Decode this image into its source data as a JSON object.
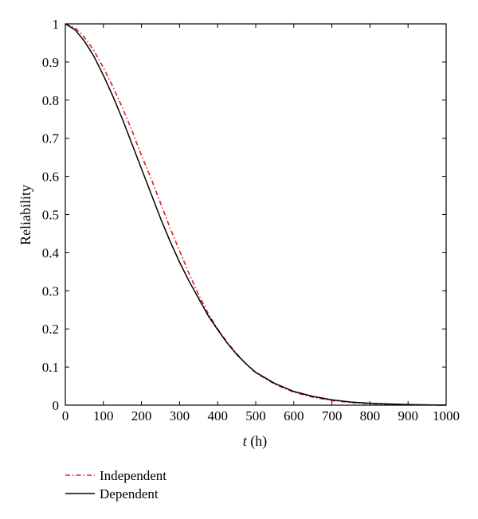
{
  "chart_data": {
    "type": "line",
    "title": "",
    "xlabel_var": "t",
    "xlabel_unit": " (h)",
    "ylabel": "Reliability",
    "xlim": [
      0,
      1000
    ],
    "ylim": [
      0,
      1
    ],
    "x_ticks": [
      0,
      100,
      200,
      300,
      400,
      500,
      600,
      700,
      800,
      900,
      1000
    ],
    "y_ticks": [
      0,
      0.1,
      0.2,
      0.3,
      0.4,
      0.5,
      0.6,
      0.7,
      0.8,
      0.9,
      1
    ],
    "grid": false,
    "legend_position": "bottom-left, below plot",
    "series": [
      {
        "name": "Independent",
        "color": "#e31a1c",
        "style": "dash-dot",
        "x": [
          0,
          25,
          50,
          75,
          100,
          125,
          150,
          175,
          200,
          225,
          250,
          275,
          300,
          325,
          350,
          375,
          400,
          425,
          450,
          475,
          500,
          550,
          600,
          650,
          700,
          750,
          800,
          850,
          900,
          950,
          1000
        ],
        "y": [
          1.0,
          0.99,
          0.965,
          0.93,
          0.885,
          0.835,
          0.78,
          0.72,
          0.655,
          0.595,
          0.53,
          0.465,
          0.405,
          0.345,
          0.29,
          0.24,
          0.2,
          0.165,
          0.135,
          0.108,
          0.085,
          0.055,
          0.034,
          0.021,
          0.012,
          0.007,
          0.004,
          0.002,
          0.001,
          0.0005,
          0.0
        ]
      },
      {
        "name": "Dependent",
        "color": "#000000",
        "style": "solid",
        "x": [
          0,
          25,
          50,
          75,
          100,
          125,
          150,
          175,
          200,
          225,
          250,
          275,
          300,
          325,
          350,
          375,
          400,
          425,
          450,
          475,
          500,
          550,
          600,
          650,
          700,
          750,
          800,
          850,
          900,
          950,
          1000
        ],
        "y": [
          1.0,
          0.985,
          0.955,
          0.915,
          0.865,
          0.81,
          0.75,
          0.685,
          0.62,
          0.555,
          0.49,
          0.43,
          0.375,
          0.325,
          0.28,
          0.235,
          0.198,
          0.163,
          0.133,
          0.108,
          0.086,
          0.057,
          0.036,
          0.023,
          0.014,
          0.008,
          0.005,
          0.003,
          0.0015,
          0.0007,
          0.0
        ]
      }
    ]
  }
}
